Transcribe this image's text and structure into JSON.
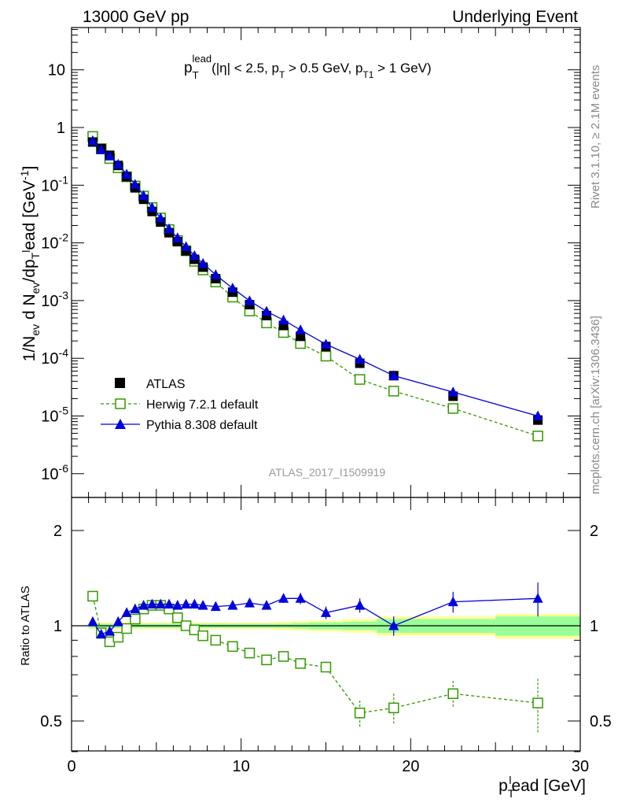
{
  "header": {
    "left": "13000 GeV pp",
    "right": "Underlying Event"
  },
  "side_labels": {
    "rivet": "Rivet 3.1.10, ≥ 2.1M events",
    "mcplots": "mcplots.cern.ch [arXiv:1306.3436]"
  },
  "watermark": "ATLAS_2017_I1509919",
  "chart_data": [
    {
      "type": "scatter",
      "title": "p_T^lead (|η| < 2.5, p_T > 0.5 GeV, p_T1 > 1 GeV)",
      "title_parts": {
        "main": "p",
        "sub": "T",
        "sup": "lead",
        "rest": "(|η| < 2.5, p",
        "sub2": "T",
        "rest2": " > 0.5 GeV, p",
        "sub3": "T1",
        "rest3": " > 1 GeV)"
      },
      "ylabel": "1/N_ev d N_ev/dp_T^lead [GeV^-1]",
      "xlabel": "p_T^lead [GeV]",
      "xlim": [
        0,
        30
      ],
      "ylim": [
        5e-07,
        50
      ],
      "yscale": "log",
      "yticks": [
        "10^-6",
        "10^-5",
        "10^-4",
        "10^-3",
        "10^-2",
        "10^-1",
        "1",
        "10"
      ],
      "xticks": [
        "0",
        "10",
        "20",
        "30"
      ],
      "legend_position": "lower-left",
      "series": [
        {
          "name": "ATLAS",
          "color": "#000000",
          "marker": "square-filled",
          "x": [
            1.25,
            1.75,
            2.25,
            2.75,
            3.25,
            3.75,
            4.25,
            4.75,
            5.25,
            5.75,
            6.25,
            6.75,
            7.25,
            7.75,
            8.5,
            9.5,
            10.5,
            11.5,
            12.5,
            13.5,
            15,
            17,
            19,
            22.5,
            27.5
          ],
          "y": [
            0.56,
            0.43,
            0.33,
            0.22,
            0.14,
            0.09,
            0.057,
            0.035,
            0.023,
            0.015,
            0.0105,
            0.0073,
            0.0052,
            0.0038,
            0.0024,
            0.0014,
            0.00085,
            0.00055,
            0.00037,
            0.00024,
            0.00016,
            8.2e-05,
            5e-05,
            2.2e-05,
            8.5e-06
          ]
        },
        {
          "name": "Herwig 7.2.1 default",
          "color": "#339900",
          "marker": "square-open",
          "line": "dashed",
          "x": [
            1.25,
            1.75,
            2.25,
            2.75,
            3.25,
            3.75,
            4.25,
            4.75,
            5.25,
            5.75,
            6.25,
            6.75,
            7.25,
            7.75,
            8.5,
            9.5,
            10.5,
            11.5,
            12.5,
            13.5,
            15,
            17,
            19,
            22.5,
            27.5
          ],
          "y": [
            0.7,
            0.43,
            0.29,
            0.2,
            0.14,
            0.097,
            0.065,
            0.041,
            0.027,
            0.017,
            0.011,
            0.0073,
            0.0048,
            0.0034,
            0.0021,
            0.00115,
            0.00066,
            0.00041,
            0.00028,
            0.00018,
            0.000109,
            4.3e-05,
            2.7e-05,
            1.35e-05,
            4.5e-06
          ]
        },
        {
          "name": "Pythia 8.308 default",
          "color": "#0000dd",
          "marker": "triangle-filled",
          "line": "solid",
          "x": [
            1.25,
            1.75,
            2.25,
            2.75,
            3.25,
            3.75,
            4.25,
            4.75,
            5.25,
            5.75,
            6.25,
            6.75,
            7.25,
            7.75,
            8.5,
            9.5,
            10.5,
            11.5,
            12.5,
            13.5,
            15,
            17,
            19,
            22.5,
            27.5
          ],
          "y": [
            0.59,
            0.41,
            0.32,
            0.23,
            0.155,
            0.103,
            0.066,
            0.041,
            0.027,
            0.0175,
            0.0122,
            0.0086,
            0.006,
            0.0044,
            0.0028,
            0.00164,
            0.00099,
            0.00065,
            0.00046,
            0.00031,
            0.000175,
            9.6e-05,
            5e-05,
            2.6e-05,
            1e-05
          ]
        }
      ]
    },
    {
      "type": "scatter",
      "ylabel": "Ratio to ATLAS",
      "xlabel": "p_T^lead [GeV]",
      "xlim": [
        0,
        30
      ],
      "ylim": [
        0.35,
        2.4
      ],
      "yscale": "log",
      "yticks": [
        "0.5",
        "1",
        "2"
      ],
      "xticks": [
        "0",
        "10",
        "20",
        "30"
      ],
      "reference_line": 1,
      "uncertainty_band": {
        "x_edges": [
          1,
          1.5,
          2,
          2.5,
          3,
          3.5,
          4,
          4.5,
          5,
          5.5,
          6,
          6.5,
          7,
          7.5,
          8,
          9,
          10,
          11,
          12,
          13,
          14,
          16,
          18,
          20,
          25,
          30
        ],
        "inner": [
          0.015,
          0.015,
          0.015,
          0.015,
          0.015,
          0.015,
          0.015,
          0.015,
          0.015,
          0.015,
          0.015,
          0.015,
          0.015,
          0.015,
          0.015,
          0.015,
          0.015,
          0.015,
          0.015,
          0.02,
          0.025,
          0.03,
          0.05,
          0.05,
          0.07
        ],
        "outer": [
          0.025,
          0.025,
          0.025,
          0.025,
          0.025,
          0.025,
          0.025,
          0.025,
          0.025,
          0.025,
          0.025,
          0.025,
          0.025,
          0.025,
          0.025,
          0.025,
          0.025,
          0.025,
          0.03,
          0.035,
          0.04,
          0.05,
          0.07,
          0.07,
          0.09
        ]
      },
      "series": [
        {
          "name": "Herwig 7.2.1 default",
          "color": "#339900",
          "marker": "square-open",
          "line": "dashed",
          "x": [
            1.25,
            1.75,
            2.25,
            2.75,
            3.25,
            3.75,
            4.25,
            4.75,
            5.25,
            5.75,
            6.25,
            6.75,
            7.25,
            7.75,
            8.5,
            9.5,
            10.5,
            11.5,
            12.5,
            13.5,
            15,
            17,
            19,
            22.5,
            27.5
          ],
          "y": [
            1.24,
            0.95,
            0.89,
            0.92,
            0.98,
            1.05,
            1.13,
            1.16,
            1.16,
            1.13,
            1.06,
            1.0,
            0.97,
            0.93,
            0.9,
            0.86,
            0.82,
            0.78,
            0.8,
            0.76,
            0.74,
            0.53,
            0.55,
            0.61,
            0.57
          ],
          "err": [
            0.02,
            0.01,
            0.01,
            0.01,
            0.01,
            0.01,
            0.01,
            0.01,
            0.01,
            0.01,
            0.01,
            0.01,
            0.01,
            0.01,
            0.01,
            0.015,
            0.015,
            0.02,
            0.03,
            0.03,
            0.03,
            0.05,
            0.06,
            0.06,
            0.11
          ]
        },
        {
          "name": "Pythia 8.308 default",
          "color": "#0000dd",
          "marker": "triangle-filled",
          "line": "solid",
          "x": [
            1.25,
            1.75,
            2.25,
            2.75,
            3.25,
            3.75,
            4.25,
            4.75,
            5.25,
            5.75,
            6.25,
            6.75,
            7.25,
            7.75,
            8.5,
            9.5,
            10.5,
            11.5,
            12.5,
            13.5,
            15,
            17,
            19,
            22.5,
            27.5
          ],
          "y": [
            1.03,
            0.94,
            0.96,
            1.03,
            1.1,
            1.13,
            1.16,
            1.17,
            1.17,
            1.17,
            1.16,
            1.17,
            1.17,
            1.16,
            1.15,
            1.16,
            1.18,
            1.16,
            1.22,
            1.22,
            1.1,
            1.16,
            1.0,
            1.19,
            1.22
          ],
          "err": [
            0.01,
            0.01,
            0.01,
            0.01,
            0.01,
            0.01,
            0.01,
            0.01,
            0.01,
            0.01,
            0.01,
            0.015,
            0.015,
            0.02,
            0.02,
            0.02,
            0.03,
            0.03,
            0.04,
            0.05,
            0.05,
            0.06,
            0.07,
            0.09,
            0.15
          ]
        }
      ]
    }
  ]
}
